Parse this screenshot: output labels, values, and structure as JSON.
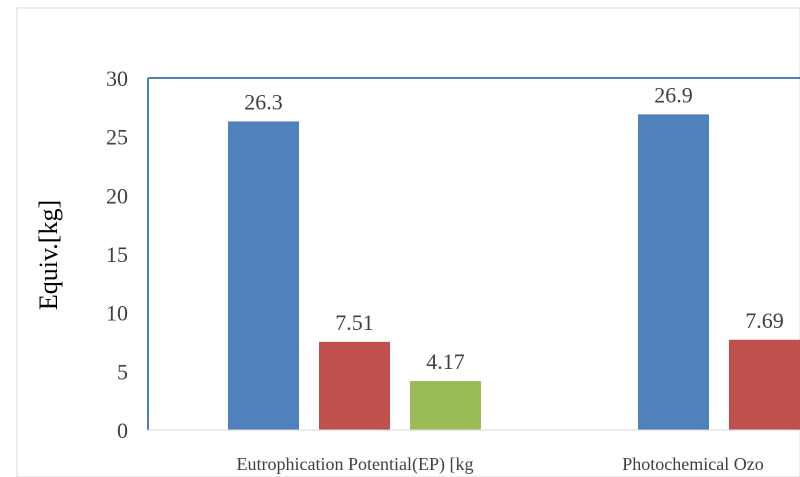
{
  "chart_data": {
    "type": "bar",
    "categories": [
      "Eutrophication Potential(EP) [kg",
      "Photochemical Ozo"
    ],
    "series": [
      {
        "color": "#4f81bd",
        "values": [
          26.3,
          26.9
        ]
      },
      {
        "color": "#c0504d",
        "values": [
          7.51,
          7.69
        ]
      },
      {
        "color": "#9bbb59",
        "values": [
          4.17,
          null
        ]
      }
    ],
    "data_labels": [
      [
        "26.3",
        "26.9"
      ],
      [
        "7.51",
        "7.69"
      ],
      [
        "4.17",
        ""
      ]
    ],
    "ylabel": "Equiv.[kg]",
    "ylim": [
      0,
      30
    ],
    "yticks": [
      "0",
      "5",
      "10",
      "15",
      "20",
      "25",
      "30"
    ],
    "grid": false,
    "frame_color": "#4f81bd"
  }
}
